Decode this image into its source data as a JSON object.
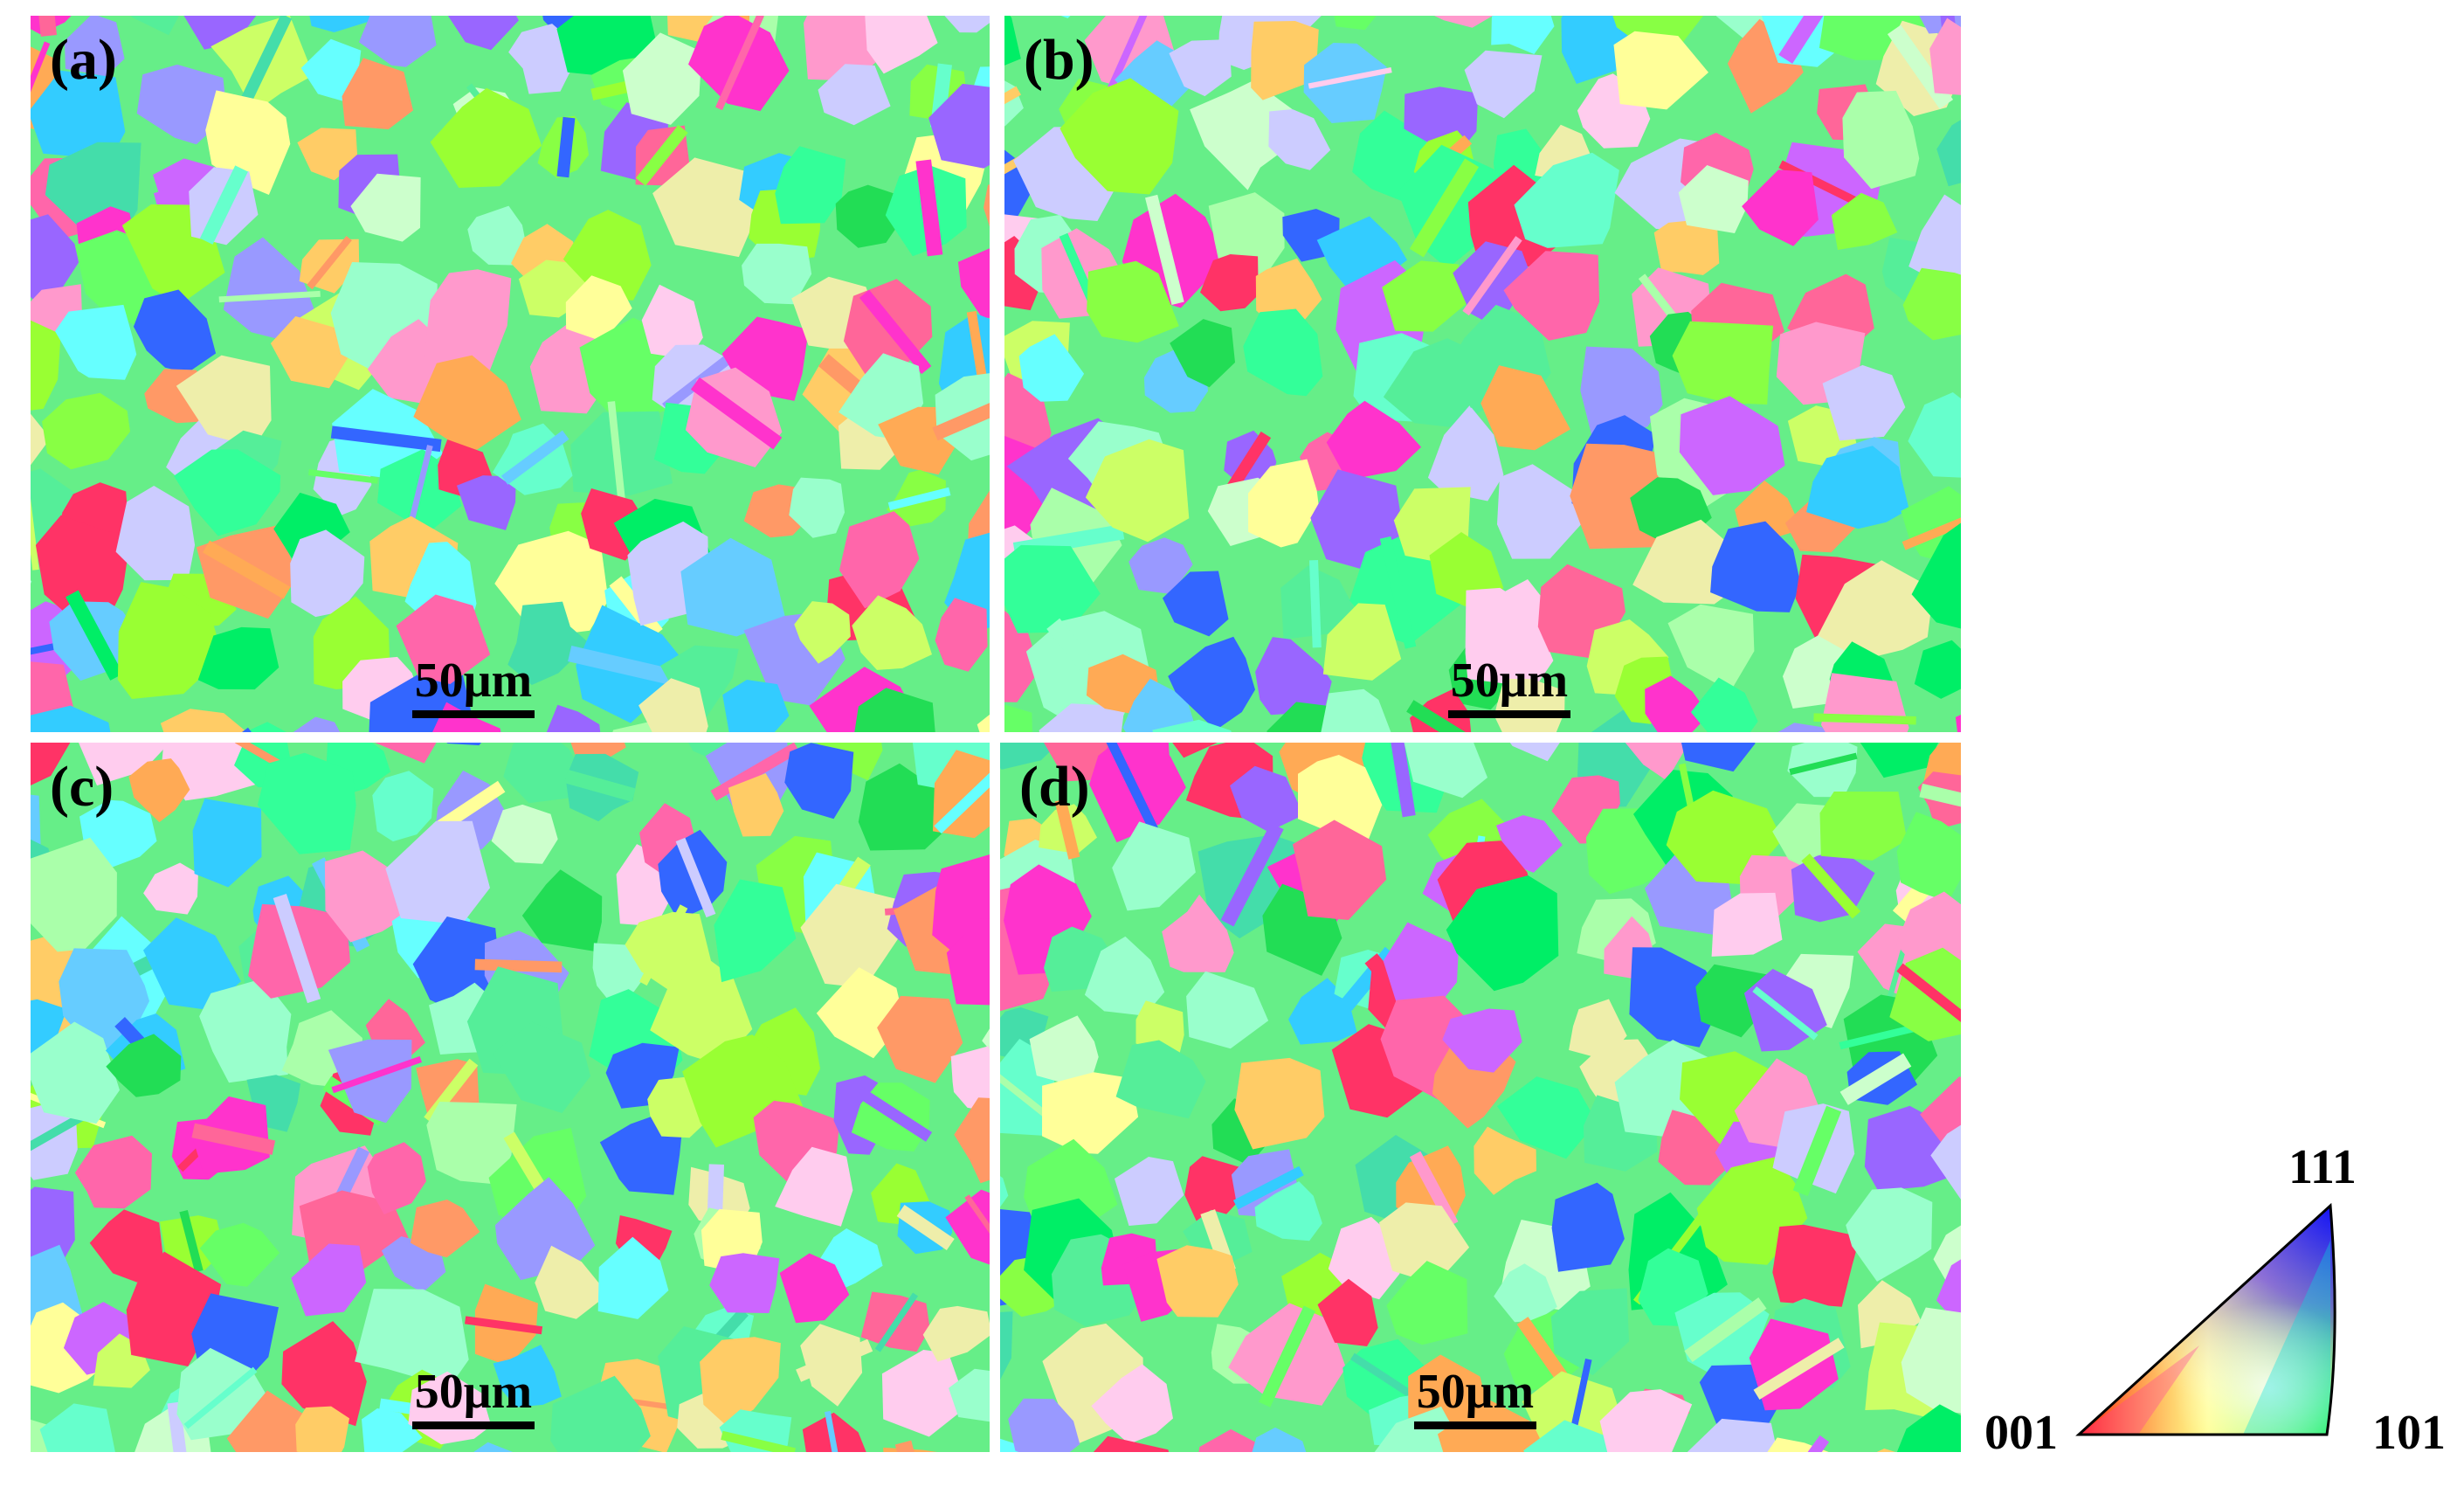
{
  "panels": [
    {
      "label": "(a)",
      "scale_text": "50μm"
    },
    {
      "label": "(b)",
      "scale_text": "50μm"
    },
    {
      "label": "(c)",
      "scale_text": "50μm"
    },
    {
      "label": "(d)",
      "scale_text": "50μm"
    }
  ],
  "legend": {
    "corner_001": "001",
    "corner_101": "101",
    "corner_111": "111"
  },
  "colors": {
    "red_001": "#ff0000",
    "green_101": "#00ff00",
    "blue_111": "#0000ff",
    "background": "#ffffff"
  }
}
